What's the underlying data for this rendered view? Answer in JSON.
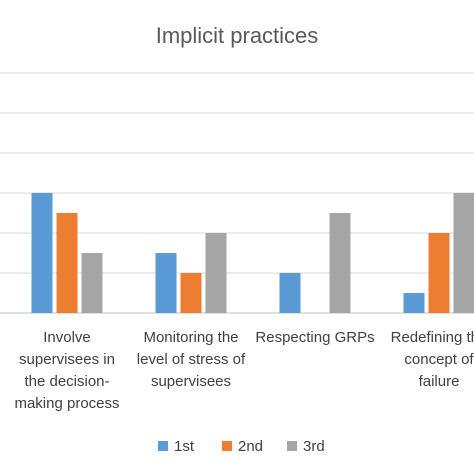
{
  "chart_data": {
    "type": "bar",
    "title": "Implicit practices",
    "xlabel": "",
    "ylabel": "",
    "categories": [
      "Involve supervisees in the decision-making process",
      "Monitoring the level of stress of supervisees",
      "Respecting GRPs",
      "Redefining the concept of failure"
    ],
    "category_lines": [
      [
        "Involve",
        "supervisees in",
        "the decision-",
        "making process"
      ],
      [
        "Monitoring the",
        "level of stress of",
        "supervisees"
      ],
      [
        "Respecting GRPs"
      ],
      [
        "Redefining the",
        "concept of",
        "failure"
      ]
    ],
    "series": [
      {
        "name": "1st",
        "color": "#5b9bd5",
        "values": [
          6,
          3,
          2,
          1
        ]
      },
      {
        "name": "2nd",
        "color": "#ed7d31",
        "values": [
          5,
          2,
          0,
          4
        ]
      },
      {
        "name": "3rd",
        "color": "#a5a5a5",
        "values": [
          3,
          4,
          5,
          6
        ]
      }
    ],
    "ylim": [
      0,
      12
    ],
    "y_gridline_step": 2,
    "y_tick_labels_visible": false,
    "grid": true,
    "legend": "bottom"
  }
}
